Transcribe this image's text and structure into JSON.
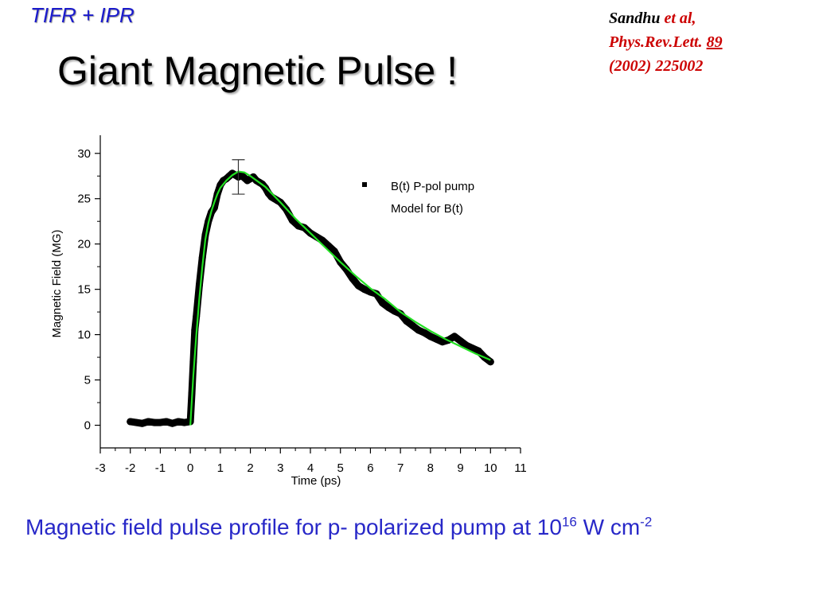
{
  "header": {
    "org": "TIFR + IPR",
    "title": "Giant Magnetic Pulse !"
  },
  "citation": {
    "author": "Sandhu",
    "etal": "et al,",
    "journal": "Phys.Rev.Lett.",
    "volume": "89",
    "year_page": "(2002) 225002"
  },
  "caption": {
    "text": "Magnetic field pulse profile for p- polarized pump at 10",
    "power_exp": "16",
    "unit": " W cm",
    "unit_exp": "-2"
  },
  "colors": {
    "title": "#000000",
    "org": "#1a1acc",
    "citation_red": "#cc0000",
    "caption": "#2828c8",
    "data_series": "#000000",
    "model_series": "#22e022"
  },
  "chart_data": {
    "type": "line",
    "xlabel": "Time (ps)",
    "ylabel": "Magnetic Field (MG)",
    "xlim": [
      -3,
      11
    ],
    "ylim": [
      -2.5,
      32
    ],
    "xticks": [
      -3,
      -2,
      -1,
      0,
      1,
      2,
      3,
      4,
      5,
      6,
      7,
      8,
      9,
      10,
      11
    ],
    "yticks": [
      0,
      5,
      10,
      15,
      20,
      25,
      30
    ],
    "legend_position": "top-right",
    "series": [
      {
        "name": "B(t) P-pol pump",
        "style": "thick-markers",
        "x": [
          -2.0,
          -1.8,
          -1.6,
          -1.4,
          -1.2,
          -1.0,
          -0.8,
          -0.6,
          -0.4,
          -0.2,
          0.0,
          0.05,
          0.1,
          0.15,
          0.2,
          0.3,
          0.4,
          0.5,
          0.6,
          0.7,
          0.8,
          0.9,
          1.0,
          1.1,
          1.2,
          1.3,
          1.4,
          1.5,
          1.6,
          1.7,
          1.8,
          1.9,
          2.0,
          2.1,
          2.2,
          2.3,
          2.4,
          2.5,
          2.6,
          2.7,
          2.8,
          2.9,
          3.0,
          3.2,
          3.4,
          3.6,
          3.8,
          4.0,
          4.2,
          4.4,
          4.6,
          4.8,
          5.0,
          5.2,
          5.4,
          5.6,
          5.8,
          6.0,
          6.2,
          6.4,
          6.6,
          6.8,
          7.0,
          7.2,
          7.4,
          7.6,
          7.8,
          8.0,
          8.2,
          8.4,
          8.6,
          8.8,
          9.0,
          9.2,
          9.4,
          9.6,
          9.8,
          10.0
        ],
        "y": [
          0.4,
          0.3,
          0.2,
          0.4,
          0.3,
          0.3,
          0.4,
          0.2,
          0.4,
          0.3,
          0.4,
          3.5,
          7.0,
          10.5,
          12.0,
          15.5,
          18.5,
          21.0,
          22.5,
          23.5,
          24.0,
          25.5,
          26.5,
          27.0,
          27.2,
          27.5,
          27.8,
          27.6,
          27.4,
          27.6,
          27.3,
          27.0,
          27.2,
          27.4,
          27.0,
          26.8,
          26.6,
          26.2,
          25.6,
          25.2,
          25.0,
          24.8,
          24.6,
          23.8,
          22.6,
          22.0,
          21.8,
          21.2,
          20.8,
          20.4,
          19.8,
          19.2,
          18.0,
          17.2,
          16.2,
          15.4,
          15.0,
          14.7,
          14.5,
          13.5,
          13.0,
          12.6,
          12.3,
          11.5,
          11.0,
          10.5,
          10.2,
          9.8,
          9.5,
          9.2,
          9.4,
          9.8,
          9.3,
          8.8,
          8.5,
          8.2,
          7.5,
          7.0
        ]
      },
      {
        "name": "Model for B(t)",
        "style": "line",
        "x": [
          0.0,
          0.1,
          0.2,
          0.3,
          0.4,
          0.5,
          0.6,
          0.7,
          0.8,
          0.9,
          1.0,
          1.2,
          1.4,
          1.6,
          1.8,
          2.0,
          2.5,
          3.0,
          3.5,
          4.0,
          4.5,
          5.0,
          5.5,
          6.0,
          6.5,
          7.0,
          7.5,
          8.0,
          8.5,
          9.0,
          9.5,
          10.0
        ],
        "y": [
          0.0,
          5.5,
          10.0,
          14.0,
          17.5,
          20.5,
          22.3,
          23.6,
          24.6,
          25.5,
          26.2,
          27.0,
          27.6,
          28.0,
          27.9,
          27.5,
          26.3,
          24.6,
          22.8,
          21.2,
          19.6,
          18.0,
          16.5,
          15.1,
          13.9,
          12.5,
          11.4,
          10.4,
          9.5,
          8.7,
          7.9,
          7.2
        ]
      }
    ],
    "error_bar": {
      "x": 1.6,
      "y": 27.4,
      "y_low": 25.5,
      "y_high": 29.3
    }
  }
}
